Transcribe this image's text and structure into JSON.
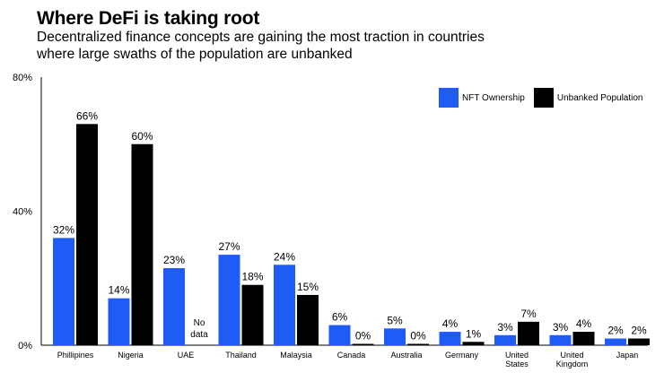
{
  "chart_data": {
    "type": "bar",
    "title": "Where DeFi is taking root",
    "subtitle": "Decentralized finance concepts are gaining the most traction in countries where large swaths of the population are unbanked",
    "categories": [
      "Phillipines",
      "Nigeria",
      "UAE",
      "Thailand",
      "Malaysia",
      "Canada",
      "Australia",
      "Germany",
      "United States",
      "United Kingdom",
      "Japan"
    ],
    "category_lines": [
      [
        "Phillipines"
      ],
      [
        "Nigeria"
      ],
      [
        "UAE"
      ],
      [
        "Thailand"
      ],
      [
        "Malaysia"
      ],
      [
        "Canada"
      ],
      [
        "Australia"
      ],
      [
        "Germany"
      ],
      [
        "United",
        "States"
      ],
      [
        "United",
        "Kingdom"
      ],
      [
        "Japan"
      ]
    ],
    "series": [
      {
        "name": "NFT Ownership",
        "color": "#1f5cf5",
        "values": [
          32,
          14,
          23,
          27,
          24,
          6,
          5,
          4,
          3,
          3,
          2
        ],
        "labels": [
          "32%",
          "14%",
          "23%",
          "27%",
          "24%",
          "6%",
          "5%",
          "4%",
          "3%",
          "3%",
          "2%"
        ]
      },
      {
        "name": "Unbanked Population",
        "color": "#000000",
        "values": [
          66,
          60,
          null,
          18,
          15,
          0,
          0,
          1,
          7,
          4,
          2
        ],
        "labels": [
          "66%",
          "60%",
          "",
          "18%",
          "15%",
          "0%",
          "0%",
          "1%",
          "7%",
          "4%",
          "2%"
        ]
      }
    ],
    "no_data_text": [
      "No",
      "data"
    ],
    "yticks": [
      0,
      40,
      80
    ],
    "ytick_labels": [
      "0%",
      "40%",
      "80%"
    ],
    "ylim": [
      0,
      80
    ],
    "legend_position": "top-right",
    "grid": false
  }
}
